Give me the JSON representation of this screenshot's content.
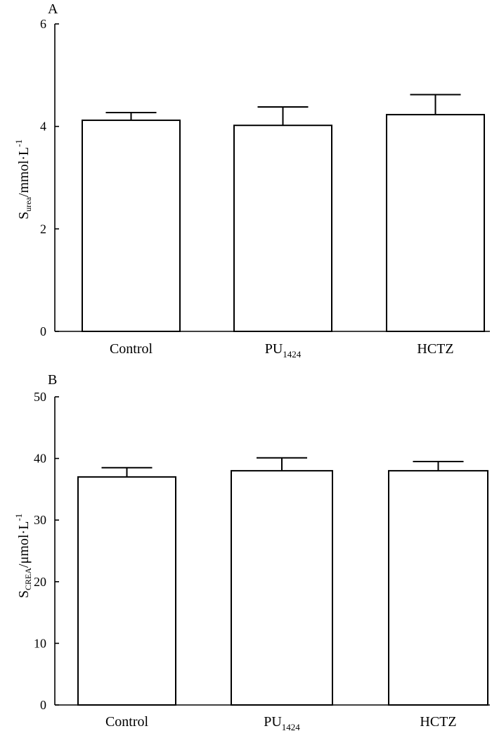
{
  "chart_data": [
    {
      "panel": "A",
      "type": "bar",
      "categories": [
        {
          "base": "Control",
          "sub": ""
        },
        {
          "base": "PU",
          "sub": "1424"
        },
        {
          "base": "HCTZ",
          "sub": ""
        }
      ],
      "values": [
        4.12,
        4.02,
        4.23
      ],
      "errors": [
        0.15,
        0.36,
        0.39
      ],
      "ylim": [
        0,
        6
      ],
      "yticks": [
        0,
        2,
        4,
        6
      ],
      "ylabel": {
        "base": "S",
        "sub": "urea",
        "rest": "/mmol·L",
        "sup": "-1"
      }
    },
    {
      "panel": "B",
      "type": "bar",
      "categories": [
        {
          "base": "Control",
          "sub": ""
        },
        {
          "base": "PU",
          "sub": "1424"
        },
        {
          "base": "HCTZ",
          "sub": ""
        }
      ],
      "values": [
        37,
        38,
        38
      ],
      "errors": [
        1.5,
        2.1,
        1.5
      ],
      "ylim": [
        0,
        50
      ],
      "yticks": [
        0,
        10,
        20,
        30,
        40,
        50
      ],
      "ylabel": {
        "base": "S",
        "sub": "CREA",
        "rest": "/μmol·L",
        "sup": "-1"
      }
    }
  ]
}
